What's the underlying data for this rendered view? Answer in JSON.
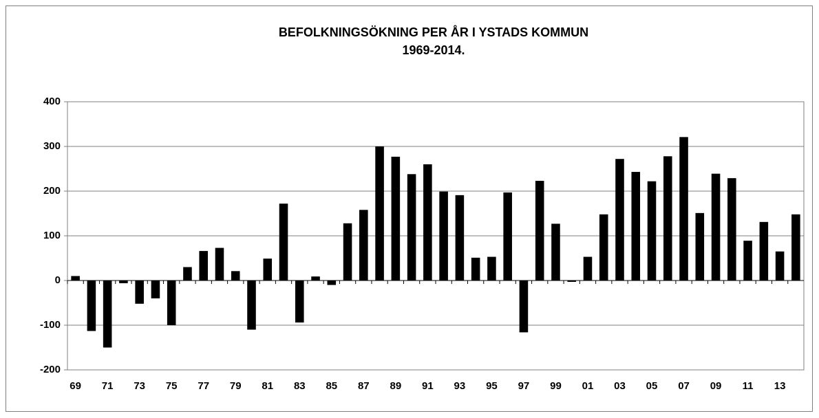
{
  "chart_data": {
    "type": "bar",
    "title": "BEFOLKNINGSÖKNING PER ÅR I YSTADS KOMMUN",
    "subtitle": "1969-2014.",
    "categories": [
      "69",
      null,
      "71",
      null,
      "73",
      null,
      "75",
      null,
      "77",
      null,
      "79",
      null,
      "81",
      null,
      "83",
      null,
      "85",
      null,
      "87",
      null,
      "89",
      null,
      "91",
      null,
      "93",
      null,
      "95",
      null,
      "97",
      null,
      "99",
      null,
      "01",
      null,
      "03",
      null,
      "05",
      null,
      "07",
      null,
      "09",
      null,
      "11",
      null,
      "13",
      null
    ],
    "values": [
      10,
      -113,
      -150,
      -6,
      -52,
      -40,
      -100,
      30,
      66,
      73,
      21,
      -110,
      49,
      172,
      -94,
      9,
      -10,
      128,
      158,
      300,
      277,
      238,
      260,
      199,
      191,
      51,
      53,
      197,
      -116,
      223,
      127,
      -3,
      53,
      148,
      272,
      243,
      222,
      278,
      321,
      151,
      239,
      229,
      89,
      131,
      65,
      148
    ],
    "color": "#000000",
    "ylim": [
      -200,
      400
    ],
    "yticks": [
      -200,
      -100,
      0,
      100,
      200,
      300,
      400
    ],
    "grid": true
  }
}
